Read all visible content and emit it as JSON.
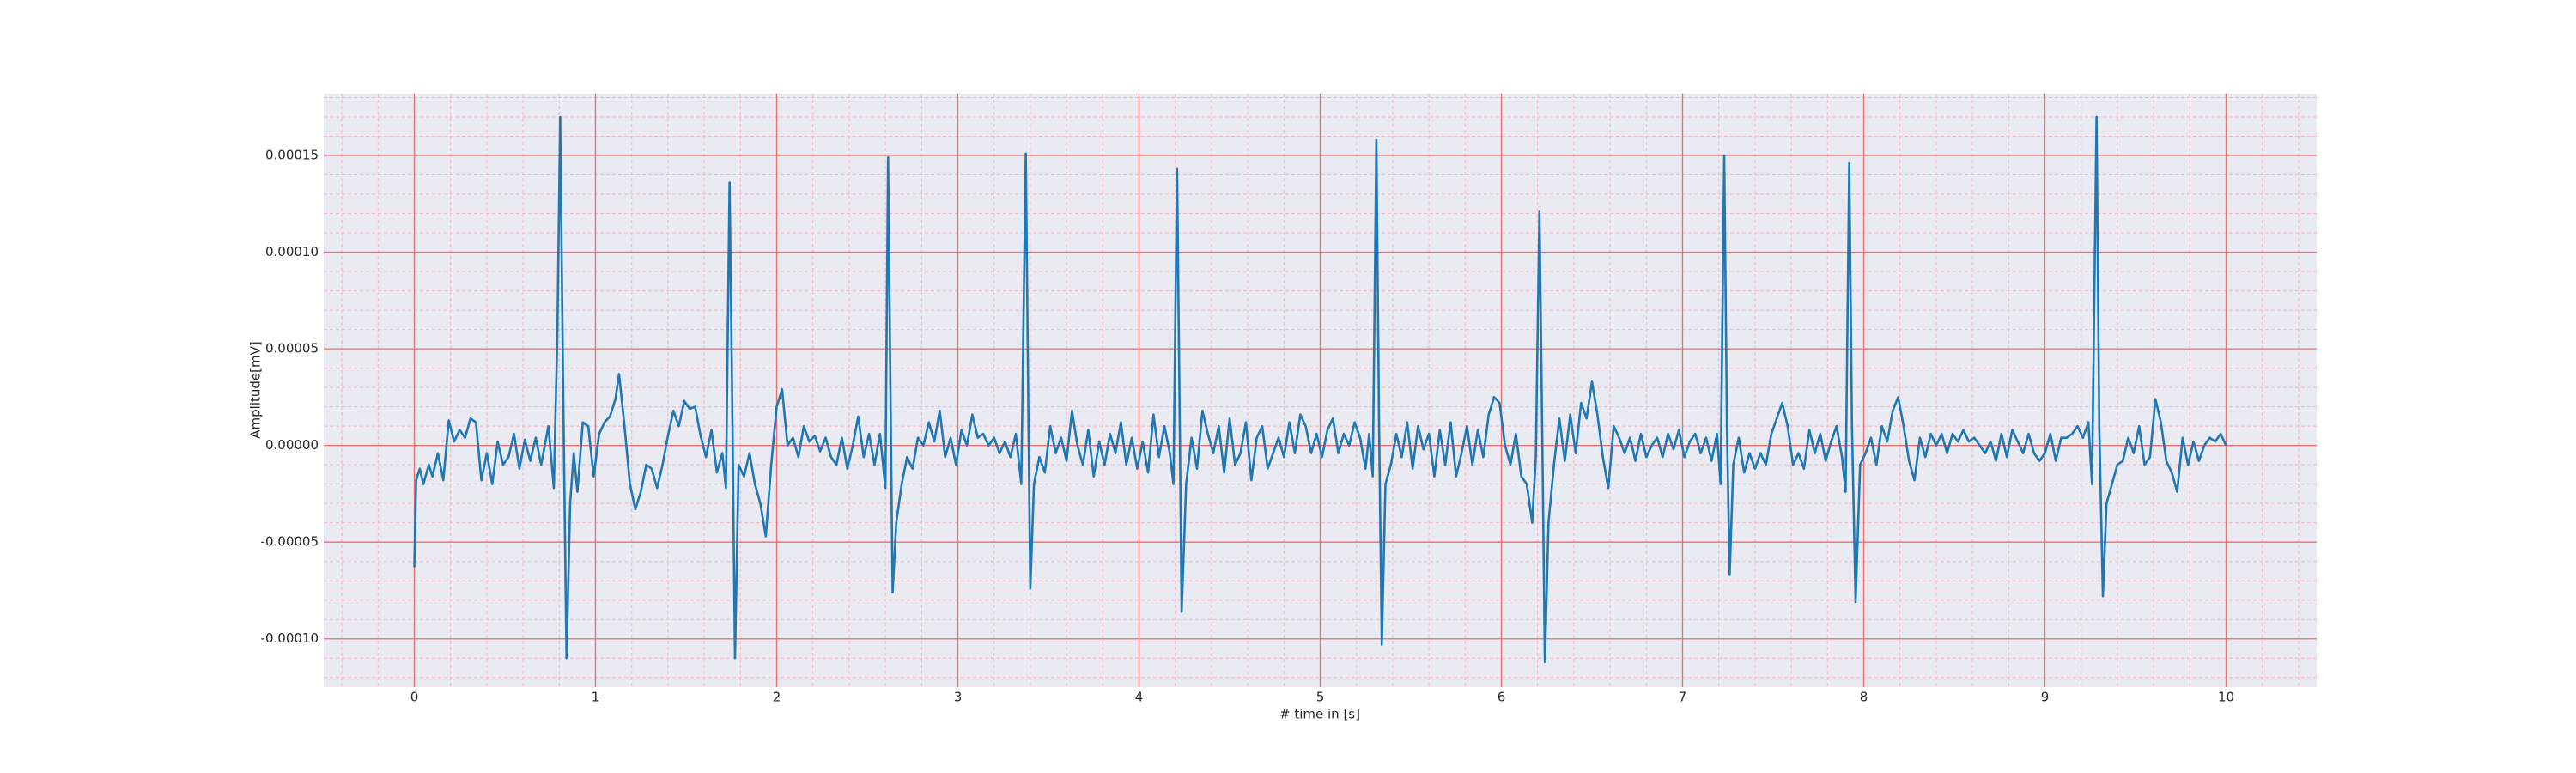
{
  "chart_data": {
    "type": "line",
    "xlabel": "# time in [s]",
    "ylabel": "Amplitude[mV]",
    "xlim": [
      -0.5,
      10.5
    ],
    "ylim": [
      -0.000125,
      0.000182
    ],
    "xticks": [
      0,
      1,
      2,
      3,
      4,
      5,
      6,
      7,
      8,
      9,
      10
    ],
    "yticks": [
      {
        "value": -0.0001,
        "label": "-0.00010"
      },
      {
        "value": -5e-05,
        "label": "-0.00005"
      },
      {
        "value": 0,
        "label": "0.00000"
      },
      {
        "value": 5e-05,
        "label": "0.00005"
      },
      {
        "value": 0.0001,
        "label": "0.00010"
      },
      {
        "value": 0.00015,
        "label": "0.00015"
      }
    ],
    "xminorticks": [
      -0.4,
      -0.2,
      0,
      0.2,
      0.4,
      0.6,
      0.8,
      1,
      1.2,
      1.4,
      1.6,
      1.8,
      2,
      2.2,
      2.4,
      2.6,
      2.8,
      3,
      3.2,
      3.4,
      3.6,
      3.8,
      4,
      4.2,
      4.4,
      4.6,
      4.8,
      5,
      5.2,
      5.4,
      5.6,
      5.8,
      6,
      6.2,
      6.4,
      6.6,
      6.8,
      7,
      7.2,
      7.4,
      7.6,
      7.8,
      8,
      8.2,
      8.4,
      8.6,
      8.8,
      9,
      9.2,
      9.4,
      9.6,
      9.8,
      10,
      10.2,
      10.4
    ],
    "yminorticks": [
      -0.00012,
      -0.00011,
      -0.0001,
      -9e-05,
      -8e-05,
      -7e-05,
      -6e-05,
      -5e-05,
      -4e-05,
      -3e-05,
      -2e-05,
      -1e-05,
      0,
      1e-05,
      2e-05,
      3e-05,
      4e-05,
      5e-05,
      6e-05,
      7e-05,
      8e-05,
      9e-05,
      0.0001,
      0.00011,
      0.00012,
      0.00013,
      0.00014,
      0.00015,
      0.00016,
      0.00017,
      0.00018
    ],
    "grid": true,
    "minor_grid": true,
    "grid_color": "#f26b6b",
    "minor_grid_color": "#f5b8c4",
    "background": "#eaeaf2",
    "x": [
      0,
      0.01,
      0.03,
      0.05,
      0.08,
      0.1,
      0.13,
      0.16,
      0.19,
      0.22,
      0.25,
      0.28,
      0.31,
      0.34,
      0.37,
      0.4,
      0.43,
      0.46,
      0.49,
      0.52,
      0.55,
      0.58,
      0.61,
      0.64,
      0.67,
      0.7,
      0.74,
      0.77,
      0.79,
      0.805,
      0.82,
      0.84,
      0.86,
      0.88,
      0.9,
      0.93,
      0.96,
      0.99,
      1.02,
      1.05,
      1.08,
      1.11,
      1.13,
      1.16,
      1.19,
      1.22,
      1.25,
      1.28,
      1.31,
      1.34,
      1.37,
      1.4,
      1.43,
      1.46,
      1.49,
      1.52,
      1.55,
      1.58,
      1.61,
      1.64,
      1.67,
      1.7,
      1.72,
      1.74,
      1.755,
      1.77,
      1.79,
      1.82,
      1.85,
      1.88,
      1.91,
      1.94,
      1.97,
      2,
      2.03,
      2.06,
      2.09,
      2.12,
      2.15,
      2.18,
      2.21,
      2.24,
      2.27,
      2.3,
      2.33,
      2.36,
      2.39,
      2.42,
      2.45,
      2.48,
      2.51,
      2.54,
      2.57,
      2.6,
      2.615,
      2.63,
      2.64,
      2.66,
      2.69,
      2.72,
      2.75,
      2.78,
      2.81,
      2.84,
      2.87,
      2.9,
      2.93,
      2.96,
      2.99,
      3.02,
      3.05,
      3.08,
      3.11,
      3.14,
      3.17,
      3.2,
      3.23,
      3.26,
      3.29,
      3.32,
      3.35,
      3.375,
      3.39,
      3.4,
      3.42,
      3.45,
      3.48,
      3.51,
      3.54,
      3.57,
      3.6,
      3.63,
      3.66,
      3.69,
      3.72,
      3.75,
      3.78,
      3.81,
      3.84,
      3.87,
      3.9,
      3.93,
      3.96,
      3.99,
      4.02,
      4.05,
      4.08,
      4.11,
      4.14,
      4.17,
      4.19,
      4.21,
      4.225,
      4.235,
      4.26,
      4.29,
      4.32,
      4.35,
      4.38,
      4.41,
      4.44,
      4.47,
      4.5,
      4.53,
      4.56,
      4.59,
      4.62,
      4.65,
      4.68,
      4.71,
      4.74,
      4.77,
      4.8,
      4.83,
      4.86,
      4.89,
      4.92,
      4.95,
      4.98,
      5.01,
      5.04,
      5.07,
      5.1,
      5.13,
      5.16,
      5.19,
      5.22,
      5.25,
      5.27,
      5.29,
      5.31,
      5.325,
      5.34,
      5.36,
      5.39,
      5.42,
      5.45,
      5.48,
      5.51,
      5.54,
      5.57,
      5.6,
      5.63,
      5.66,
      5.69,
      5.72,
      5.75,
      5.78,
      5.81,
      5.84,
      5.87,
      5.9,
      5.93,
      5.96,
      5.99,
      6.02,
      6.05,
      6.08,
      6.11,
      6.14,
      6.17,
      6.19,
      6.21,
      6.225,
      6.24,
      6.26,
      6.29,
      6.32,
      6.35,
      6.38,
      6.41,
      6.44,
      6.47,
      6.5,
      6.53,
      6.56,
      6.59,
      6.62,
      6.65,
      6.68,
      6.71,
      6.74,
      6.77,
      6.8,
      6.83,
      6.86,
      6.89,
      6.92,
      6.95,
      6.98,
      7.01,
      7.04,
      7.07,
      7.1,
      7.13,
      7.16,
      7.19,
      7.21,
      7.23,
      7.245,
      7.26,
      7.28,
      7.31,
      7.34,
      7.37,
      7.4,
      7.43,
      7.46,
      7.49,
      7.52,
      7.55,
      7.58,
      7.61,
      7.64,
      7.67,
      7.7,
      7.73,
      7.76,
      7.79,
      7.82,
      7.85,
      7.88,
      7.9,
      7.92,
      7.935,
      7.955,
      7.98,
      8.01,
      8.04,
      8.07,
      8.1,
      8.13,
      8.16,
      8.19,
      8.22,
      8.25,
      8.28,
      8.31,
      8.34,
      8.37,
      8.4,
      8.43,
      8.46,
      8.49,
      8.52,
      8.55,
      8.58,
      8.61,
      8.64,
      8.67,
      8.7,
      8.73,
      8.76,
      8.79,
      8.82,
      8.85,
      8.88,
      8.91,
      8.94,
      8.97,
      9,
      9.03,
      9.06,
      9.09,
      9.12,
      9.15,
      9.18,
      9.21,
      9.24,
      9.26,
      9.285,
      9.3,
      9.32,
      9.34,
      9.37,
      9.4,
      9.43,
      9.46,
      9.49,
      9.52,
      9.55,
      9.58,
      9.61,
      9.64,
      9.67,
      9.7,
      9.73,
      9.76,
      9.79,
      9.82,
      9.85,
      9.88,
      9.91,
      9.94,
      9.97,
      10
    ],
    "series": [
      {
        "color": "#1f77b4",
        "values": [
          -6.3e-05,
          -1.8e-05,
          -1.2e-05,
          -2e-05,
          -1e-05,
          -1.6e-05,
          -4e-06,
          -1.8e-05,
          1.3e-05,
          2e-06,
          8e-06,
          4e-06,
          1.4e-05,
          1.2e-05,
          -1.8e-05,
          -4e-06,
          -2e-05,
          2e-06,
          -1e-05,
          -6e-06,
          6e-06,
          -1.2e-05,
          3e-06,
          -8e-06,
          4e-06,
          -1e-05,
          1e-05,
          -2.2e-05,
          6e-05,
          0.00017,
          4e-05,
          -0.00011,
          -3e-05,
          -4e-06,
          -2.4e-05,
          1.2e-05,
          1e-05,
          -1.6e-05,
          6e-06,
          1.2e-05,
          1.5e-05,
          2.4e-05,
          3.7e-05,
          1e-05,
          -2e-05,
          -3.3e-05,
          -2.4e-05,
          -1e-05,
          -1.2e-05,
          -2.2e-05,
          -1e-05,
          5e-06,
          1.8e-05,
          1e-05,
          2.3e-05,
          1.9e-05,
          2e-05,
          5e-06,
          -6e-06,
          8e-06,
          -1.4e-05,
          -4e-06,
          -2.2e-05,
          0.000136,
          2e-05,
          -0.00011,
          -1e-05,
          -1.6e-05,
          -4e-06,
          -2e-05,
          -3e-05,
          -4.7e-05,
          -1e-05,
          2e-05,
          2.9e-05,
          0,
          4e-06,
          -6e-06,
          1e-05,
          2e-06,
          5e-06,
          -3e-06,
          4e-06,
          -6e-06,
          -1e-05,
          4e-06,
          -1.2e-05,
          0,
          1.5e-05,
          -6e-06,
          6e-06,
          -1e-05,
          6e-06,
          -2.2e-05,
          0.000149,
          1e-05,
          -7.6e-05,
          -4e-05,
          -2e-05,
          -6e-06,
          -1.2e-05,
          4e-06,
          0,
          1.2e-05,
          2e-06,
          1.8e-05,
          -6e-06,
          4e-06,
          -1e-05,
          8e-06,
          0,
          1.6e-05,
          4e-06,
          6e-06,
          0,
          4e-06,
          -4e-06,
          2e-06,
          -6e-06,
          6e-06,
          -2e-05,
          0.000151,
          1e-05,
          -7.4e-05,
          -2e-05,
          -6e-06,
          -1.4e-05,
          1e-05,
          -4e-06,
          4e-06,
          -8e-06,
          1.8e-05,
          0,
          -1e-05,
          8e-06,
          -1.6e-05,
          2e-06,
          -1e-05,
          6e-06,
          -4e-06,
          1.2e-05,
          -1e-05,
          4e-06,
          -1.2e-05,
          2e-06,
          -1.4e-05,
          1.6e-05,
          -6e-06,
          1e-05,
          -4e-06,
          -2e-05,
          0.000143,
          1e-05,
          -8.6e-05,
          -2e-05,
          4e-06,
          -1.2e-05,
          1.8e-05,
          6e-06,
          -4e-06,
          1e-05,
          -1.4e-05,
          1.4e-05,
          -1e-05,
          -4e-06,
          1.2e-05,
          -1.8e-05,
          4e-06,
          1e-05,
          -1.2e-05,
          -4e-06,
          4e-06,
          -6e-06,
          1.2e-05,
          -4e-06,
          1.6e-05,
          1e-05,
          -4e-06,
          6e-06,
          -6e-06,
          8e-06,
          1.4e-05,
          -4e-06,
          6e-06,
          0,
          1.2e-05,
          4e-06,
          -1.2e-05,
          6e-06,
          -1.6e-05,
          0.000158,
          1e-05,
          -0.000103,
          -2e-05,
          -1e-05,
          6e-06,
          -6e-06,
          1.2e-05,
          -1.2e-05,
          1e-05,
          -2e-06,
          6e-06,
          -1.6e-05,
          8e-06,
          -1e-05,
          1.2e-05,
          -1.6e-05,
          -4e-06,
          1e-05,
          -1e-05,
          8e-06,
          -6e-06,
          1.6e-05,
          2.5e-05,
          2.2e-05,
          0,
          -1e-05,
          6e-06,
          -1.6e-05,
          -2e-05,
          -4e-05,
          -6e-06,
          0.000121,
          1e-05,
          -0.000112,
          -4e-05,
          -1e-05,
          1.4e-05,
          -8e-06,
          1.6e-05,
          -4e-06,
          2.2e-05,
          1.4e-05,
          3.3e-05,
          1.6e-05,
          -6e-06,
          -2.2e-05,
          1e-05,
          4e-06,
          -4e-06,
          4e-06,
          -8e-06,
          6e-06,
          -6e-06,
          0,
          4e-06,
          -6e-06,
          6e-06,
          -2e-06,
          8e-06,
          -6e-06,
          2e-06,
          6e-06,
          -4e-06,
          4e-06,
          -8e-06,
          6e-06,
          -2e-05,
          0.00015,
          1e-05,
          -6.7e-05,
          -1e-05,
          4e-06,
          -1.4e-05,
          -4e-06,
          -1.2e-05,
          -4e-06,
          -1e-05,
          6e-06,
          1.4e-05,
          2.2e-05,
          1e-05,
          -1e-05,
          -4e-06,
          -1.2e-05,
          8e-06,
          -4e-06,
          6e-06,
          -8e-06,
          2e-06,
          1e-05,
          -6e-06,
          -2.4e-05,
          0.000146,
          1e-05,
          -8.1e-05,
          -1e-05,
          -4e-06,
          4e-06,
          -1e-05,
          1e-05,
          2e-06,
          1.8e-05,
          2.5e-05,
          1e-05,
          -8e-06,
          -1.8e-05,
          4e-06,
          -6e-06,
          6e-06,
          0,
          6e-06,
          -4e-06,
          6e-06,
          2e-06,
          8e-06,
          2e-06,
          4e-06,
          0,
          -4e-06,
          2e-06,
          -8e-06,
          6e-06,
          -6e-06,
          8e-06,
          2e-06,
          -4e-06,
          6e-06,
          -4e-06,
          -8e-06,
          -4e-06,
          6e-06,
          -8e-06,
          4e-06,
          4e-06,
          6e-06,
          1e-05,
          4e-06,
          1.2e-05,
          -2e-05,
          0.00017,
          1e-05,
          -7.8e-05,
          -3e-05,
          -2e-05,
          -1e-05,
          -8e-06,
          4e-06,
          -4e-06,
          1e-05,
          -1e-05,
          -6e-06,
          2.4e-05,
          1.2e-05,
          -8e-06,
          -1.4e-05,
          -2.4e-05,
          4e-06,
          -1e-05,
          2e-06,
          -8e-06,
          0,
          4e-06,
          2e-06,
          6e-06,
          0
        ]
      }
    ]
  }
}
